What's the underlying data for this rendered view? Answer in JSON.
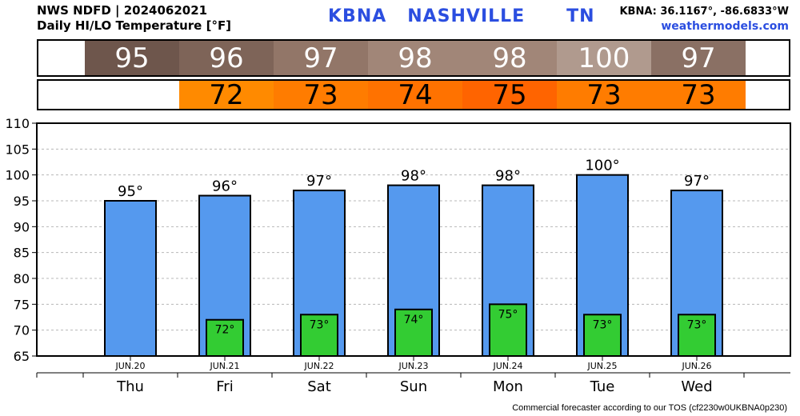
{
  "header": {
    "line1": "NWS NDFD | 2024062021",
    "line2": "Daily HI/LO Temperature [°F]",
    "station_title": "KBNA   NASHVILLE      TN",
    "coords": "KBNA: 36.1167°, -86.6833°W",
    "site": "weathermodels.com"
  },
  "strip": {
    "hi_values": [
      "95",
      "96",
      "97",
      "98",
      "98",
      "100",
      "97"
    ],
    "hi_colors": [
      "#6e564c",
      "#7e6458",
      "#927668",
      "#a18678",
      "#a18678",
      "#b09a8e",
      "#8a7064"
    ],
    "lo_values": [
      "",
      "72",
      "73",
      "74",
      "75",
      "73",
      "73"
    ],
    "lo_colors": [
      "#ffffff",
      "#ff8a00",
      "#ff7c00",
      "#ff7200",
      "#ff6400",
      "#ff7c00",
      "#ff7c00"
    ]
  },
  "chart_data": {
    "type": "bar",
    "categories": [
      "Thu",
      "Fri",
      "Sat",
      "Sun",
      "Mon",
      "Tue",
      "Wed"
    ],
    "dates": [
      "JUN.20",
      "JUN.21",
      "JUN.22",
      "JUN.23",
      "JUN.24",
      "JUN.25",
      "JUN.26"
    ],
    "series": [
      {
        "values": [
          95,
          96,
          97,
          98,
          98,
          100,
          97
        ],
        "labels": [
          "95°",
          "96°",
          "97°",
          "98°",
          "98°",
          "100°",
          "97°"
        ],
        "color": "#5599ee"
      },
      {
        "values": [
          null,
          72,
          73,
          74,
          75,
          73,
          73
        ],
        "labels": [
          "",
          "72°",
          "73°",
          "74°",
          "75°",
          "73°",
          "73°"
        ],
        "color": "#33cc33"
      }
    ],
    "ylim": [
      65,
      110
    ],
    "yticks": [
      65,
      70,
      75,
      80,
      85,
      90,
      95,
      100,
      105,
      110
    ],
    "grid": true
  },
  "footer": "Commercial forecaster according to our TOS (cf2230w0UKBNA0p230)"
}
